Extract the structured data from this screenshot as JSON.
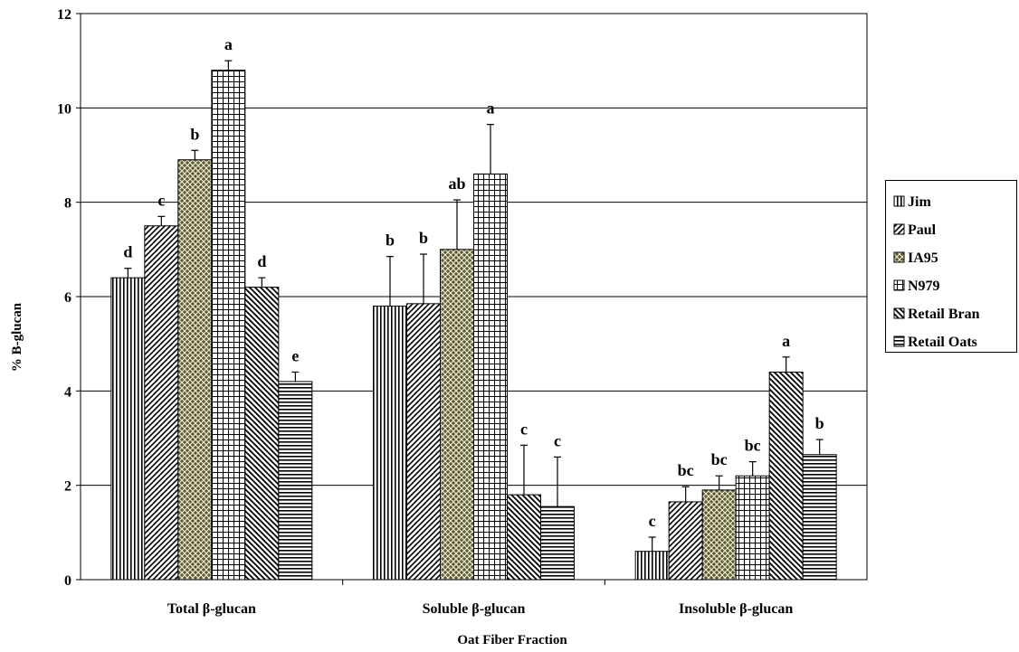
{
  "chart_data": {
    "type": "bar",
    "title": "",
    "xlabel": "Oat Fiber Fraction",
    "ylabel": "% B-glucan",
    "ylim": [
      0,
      12
    ],
    "yticks": [
      0,
      2,
      4,
      6,
      8,
      10,
      12
    ],
    "grid": true,
    "legend_position": "right",
    "categories": [
      "Total β-glucan",
      "Soluble β-glucan",
      "Insoluble β-glucan"
    ],
    "series": [
      {
        "name": "Jim",
        "pattern": "vertical",
        "values": [
          6.4,
          5.8,
          0.6
        ],
        "errors": [
          0.2,
          1.05,
          0.3
        ],
        "letters": [
          "d",
          "b",
          "c"
        ]
      },
      {
        "name": "Paul",
        "pattern": "diag-up",
        "values": [
          7.5,
          5.85,
          1.65
        ],
        "errors": [
          0.2,
          1.05,
          0.32
        ],
        "letters": [
          "c",
          "b",
          "bc"
        ]
      },
      {
        "name": "IA95",
        "pattern": "checker",
        "values": [
          8.9,
          7.0,
          1.9
        ],
        "errors": [
          0.2,
          1.05,
          0.3
        ],
        "letters": [
          "b",
          "ab",
          "bc"
        ]
      },
      {
        "name": "N979",
        "pattern": "grid",
        "values": [
          10.8,
          8.6,
          2.2
        ],
        "errors": [
          0.2,
          1.05,
          0.3
        ],
        "letters": [
          "a",
          "a",
          "bc"
        ]
      },
      {
        "name": "Retail Bran",
        "pattern": "diag-down",
        "values": [
          6.2,
          1.8,
          4.4
        ],
        "errors": [
          0.2,
          1.05,
          0.32
        ],
        "letters": [
          "d",
          "c",
          "a"
        ]
      },
      {
        "name": "Retail Oats",
        "pattern": "horizontal",
        "values": [
          4.2,
          1.55,
          2.65
        ],
        "errors": [
          0.2,
          1.05,
          0.32
        ],
        "letters": [
          "e",
          "c",
          "b"
        ]
      }
    ]
  }
}
